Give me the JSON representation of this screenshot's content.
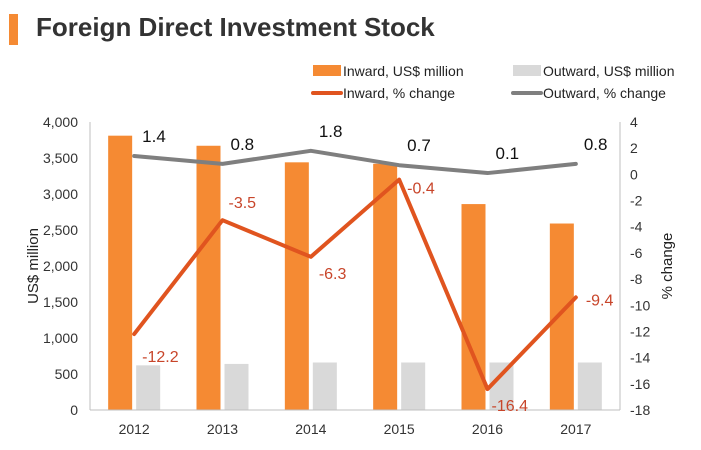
{
  "title": "Foreign Direct Investment Stock",
  "colors": {
    "accent": "#f58a33",
    "inward_bar": "#f58a33",
    "outward_bar": "#d9d9d9",
    "inward_line": "#e0541f",
    "outward_line": "#7f7f7f",
    "inward_label": "#c8452a"
  },
  "chart_data": {
    "type": "bar",
    "categories": [
      "2012",
      "2013",
      "2014",
      "2015",
      "2016",
      "2017"
    ],
    "y_left": {
      "label": "US$ million",
      "lim": [
        0,
        4000
      ],
      "ticks": [
        0,
        500,
        1000,
        1500,
        2000,
        2500,
        3000,
        3500,
        4000
      ],
      "tick_labels": [
        "0",
        "500",
        "1,000",
        "1,500",
        "2,000",
        "2,500",
        "3,000",
        "3,500",
        "4,000"
      ]
    },
    "y_right": {
      "label": "% change",
      "lim": [
        -18,
        4
      ],
      "ticks": [
        -18,
        -16,
        -14,
        -12,
        -10,
        -8,
        -6,
        -4,
        -2,
        0,
        2,
        4
      ],
      "tick_labels": [
        "-18",
        "-16",
        "-14",
        "-12",
        "-10",
        "-8",
        "-6",
        "-4",
        "-2",
        "0",
        "2",
        "4"
      ]
    },
    "series": [
      {
        "name": "Inward, US$ million",
        "kind": "bar",
        "axis": "left",
        "values": [
          3810,
          3670,
          3440,
          3420,
          2860,
          2590
        ]
      },
      {
        "name": "Outward, US$ million",
        "kind": "bar",
        "axis": "left",
        "values": [
          620,
          640,
          660,
          660,
          660,
          660
        ]
      },
      {
        "name": "Inward, % change",
        "kind": "line",
        "axis": "right",
        "values": [
          -12.2,
          -3.5,
          -6.3,
          -0.4,
          -16.4,
          -9.4
        ],
        "labels": [
          "-12.2",
          "-3.5",
          "-6.3",
          "-0.4",
          "-16.4",
          "-9.4"
        ]
      },
      {
        "name": "Outward, % change",
        "kind": "line",
        "axis": "right",
        "values": [
          1.4,
          0.8,
          1.8,
          0.7,
          0.1,
          0.8
        ],
        "labels": [
          "1.4",
          "0.8",
          "1.8",
          "0.7",
          "0.1",
          "0.8"
        ]
      }
    ],
    "legend_position": "top-right",
    "grid": false
  }
}
